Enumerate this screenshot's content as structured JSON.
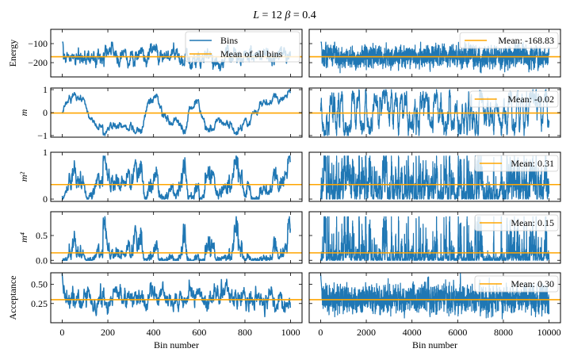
{
  "chart_data": {
    "type": "line",
    "title": "L = 12   β = 0.4",
    "title_parts": {
      "L_label": "L",
      "L_value": "12",
      "beta_label": "β",
      "beta_value": "0.4"
    },
    "colors": {
      "series": "#1f77b4",
      "mean": "#ffa500"
    },
    "grid": false,
    "columns": [
      {
        "xlabel": "Bin number",
        "xlim": [
          -50,
          1050
        ],
        "xticks": [
          0,
          200,
          400,
          600,
          800,
          1000
        ],
        "n_points": 1000
      },
      {
        "xlabel": "Bin number",
        "xlim": [
          -500,
          10500
        ],
        "xticks": [
          0,
          2000,
          4000,
          6000,
          8000,
          10000
        ],
        "n_points": 10000
      }
    ],
    "rows": [
      {
        "ylabel": "Energy",
        "ylim": [
          -275,
          -25
        ],
        "yticks": [
          -100,
          -200
        ],
        "ytick_labels": [
          "−100",
          "−200"
        ],
        "mean": -168.83,
        "mean_label": "Mean: -168.83",
        "range": [
          -260,
          -25
        ],
        "kind": "energy"
      },
      {
        "ylabel": "m",
        "ylim": [
          -1.07,
          1.07
        ],
        "yticks": [
          1,
          0,
          -1
        ],
        "ytick_labels": [
          "1",
          "0",
          "−1"
        ],
        "mean": -0.02,
        "mean_label": "Mean: -0.02",
        "range": [
          -1.0,
          1.0
        ],
        "kind": "m"
      },
      {
        "ylabel": "m²",
        "ylim": [
          -0.05,
          1.0
        ],
        "yticks": [
          1,
          0
        ],
        "ytick_labels": [
          "1",
          "0"
        ],
        "mean": 0.31,
        "mean_label": "Mean: 0.31",
        "range": [
          0,
          0.9
        ],
        "kind": "m2"
      },
      {
        "ylabel": "m⁴",
        "ylim": [
          -0.06,
          0.98
        ],
        "yticks": [
          0.5,
          0.0
        ],
        "ytick_labels": [
          "0.5",
          "0.0"
        ],
        "mean": 0.15,
        "mean_label": "Mean: 0.15",
        "range": [
          0,
          0.87
        ],
        "kind": "m4"
      },
      {
        "ylabel": "Acceptance",
        "ylim": [
          0.0,
          0.65
        ],
        "yticks": [
          0.5,
          0.25
        ],
        "ytick_labels": [
          "0.50",
          "0.25"
        ],
        "mean": 0.3,
        "mean_label": "Mean: 0.30",
        "range": [
          0.05,
          0.64
        ],
        "kind": "acc"
      }
    ],
    "legend_left": {
      "position": "upper-right",
      "entries": [
        {
          "label": "Bins",
          "color": "#1f77b4"
        },
        {
          "label": "Mean of all bins",
          "color": "#ffa500"
        }
      ]
    },
    "legend_right_position": "upper-right"
  }
}
